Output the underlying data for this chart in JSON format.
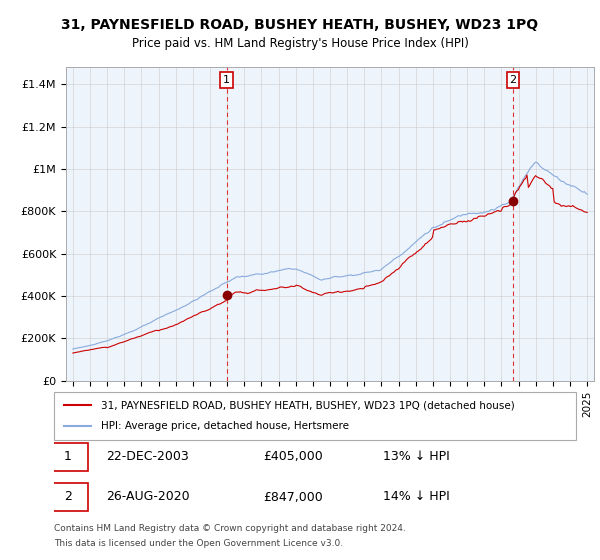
{
  "title": "31, PAYNESFIELD ROAD, BUSHEY HEATH, BUSHEY, WD23 1PQ",
  "subtitle": "Price paid vs. HM Land Registry's House Price Index (HPI)",
  "ylabel_ticks": [
    "£0",
    "£200K",
    "£400K",
    "£600K",
    "£800K",
    "£1M",
    "£1.2M",
    "£1.4M"
  ],
  "ytick_vals": [
    0,
    200000,
    400000,
    600000,
    800000,
    1000000,
    1200000,
    1400000
  ],
  "ylim": [
    0,
    1480000
  ],
  "xlim": [
    1994.6,
    2025.4
  ],
  "sale1_x": 2003.97,
  "sale1_price": 405000,
  "sale2_x": 2020.67,
  "sale2_price": 847000,
  "legend_sale": "31, PAYNESFIELD ROAD, BUSHEY HEATH, BUSHEY, WD23 1PQ (detached house)",
  "legend_hpi": "HPI: Average price, detached house, Hertsmere",
  "table": [
    [
      "1",
      "22-DEC-2003",
      "£405,000",
      "13% ↓ HPI"
    ],
    [
      "2",
      "26-AUG-2020",
      "£847,000",
      "14% ↓ HPI"
    ]
  ],
  "footnote1": "Contains HM Land Registry data © Crown copyright and database right 2024.",
  "footnote2": "This data is licensed under the Open Government Licence v3.0.",
  "sale_color": "#cc0000",
  "hpi_color": "#88aadd",
  "hpi_fill": "#ddeeff",
  "sale_marker_color": "#880000",
  "vline_color": "#dd3333",
  "box_edgecolor": "#cc0000",
  "grid_color": "#cccccc",
  "plot_bg": "#eef4fb",
  "background_color": "#ffffff"
}
